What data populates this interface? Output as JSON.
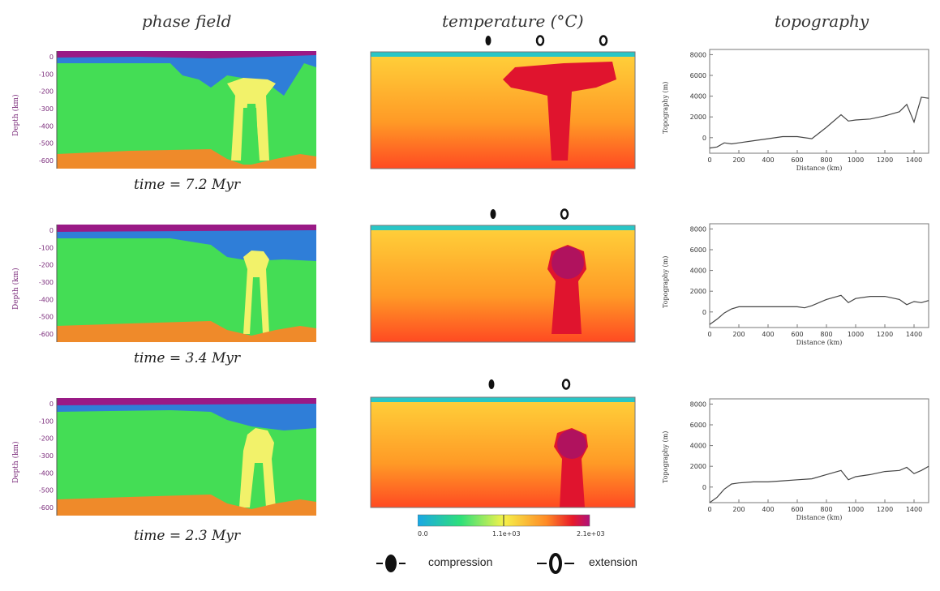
{
  "titles": {
    "phase": "phase field",
    "temperature": "temperature (°C)",
    "topography": "topography"
  },
  "rows": [
    {
      "time": "time = 7.2 Myr",
      "markers": [
        "compression",
        "extension",
        "extension"
      ]
    },
    {
      "time": "time = 3.4 Myr",
      "markers": [
        "compression",
        "extension"
      ]
    },
    {
      "time": "time = 2.3 Myr",
      "markers": [
        "compression",
        "extension"
      ]
    }
  ],
  "phase_axis": {
    "ylabel": "Depth (km)",
    "ticks": [
      "0",
      "-100",
      "-200",
      "-300",
      "-400",
      "-500",
      "-600"
    ]
  },
  "colorbar": {
    "ticks": [
      "0.0",
      "1.1e+03",
      "2.1e+03"
    ]
  },
  "legend": {
    "compression": "compression",
    "extension": "extension"
  },
  "chart_data": [
    {
      "type": "line",
      "xlabel": "Distance (km)",
      "ylabel": "Topography (m)",
      "xticks": [
        "0",
        "200",
        "400",
        "600",
        "800",
        "1000",
        "1200",
        "1400"
      ],
      "yticks": [
        "8000",
        "6000",
        "4000",
        "2000",
        "0"
      ],
      "xlim": [
        0,
        1500
      ],
      "ylim": [
        -1500,
        8500
      ],
      "series": [
        {
          "x": [
            0,
            50,
            100,
            150,
            200,
            300,
            400,
            500,
            600,
            700,
            800,
            900,
            950,
            1000,
            1100,
            1200,
            1300,
            1350,
            1400,
            1450,
            1500
          ],
          "y": [
            -1000,
            -900,
            -500,
            -600,
            -500,
            -300,
            -100,
            100,
            100,
            -100,
            1000,
            2200,
            1600,
            1700,
            1800,
            2100,
            2500,
            3200,
            1500,
            3900,
            3800
          ]
        }
      ]
    },
    {
      "type": "line",
      "xlabel": "Distance (km)",
      "ylabel": "Topography (m)",
      "xticks": [
        "0",
        "200",
        "400",
        "600",
        "800",
        "1000",
        "1200",
        "1400"
      ],
      "yticks": [
        "8000",
        "6000",
        "4000",
        "2000",
        "0"
      ],
      "xlim": [
        0,
        1500
      ],
      "ylim": [
        -1500,
        8500
      ],
      "series": [
        {
          "x": [
            0,
            50,
            100,
            150,
            200,
            300,
            400,
            500,
            600,
            650,
            700,
            800,
            900,
            950,
            1000,
            1100,
            1200,
            1300,
            1350,
            1400,
            1450,
            1500
          ],
          "y": [
            -1200,
            -700,
            -100,
            300,
            500,
            500,
            500,
            500,
            500,
            400,
            600,
            1200,
            1600,
            900,
            1300,
            1500,
            1500,
            1200,
            700,
            1000,
            900,
            1100
          ]
        }
      ]
    },
    {
      "type": "line",
      "xlabel": "Distance (km)",
      "ylabel": "Topography (m)",
      "xticks": [
        "0",
        "200",
        "400",
        "600",
        "800",
        "1000",
        "1200",
        "1400"
      ],
      "yticks": [
        "8000",
        "6000",
        "4000",
        "2000",
        "0"
      ],
      "xlim": [
        0,
        1500
      ],
      "ylim": [
        -1500,
        8500
      ],
      "series": [
        {
          "x": [
            0,
            50,
            100,
            150,
            200,
            300,
            400,
            500,
            600,
            700,
            800,
            900,
            950,
            1000,
            1100,
            1200,
            1300,
            1350,
            1400,
            1450,
            1500
          ],
          "y": [
            -1500,
            -1000,
            -200,
            300,
            400,
            500,
            500,
            600,
            700,
            800,
            1200,
            1600,
            700,
            1000,
            1200,
            1500,
            1600,
            1900,
            1300,
            1600,
            2000
          ]
        }
      ]
    }
  ]
}
